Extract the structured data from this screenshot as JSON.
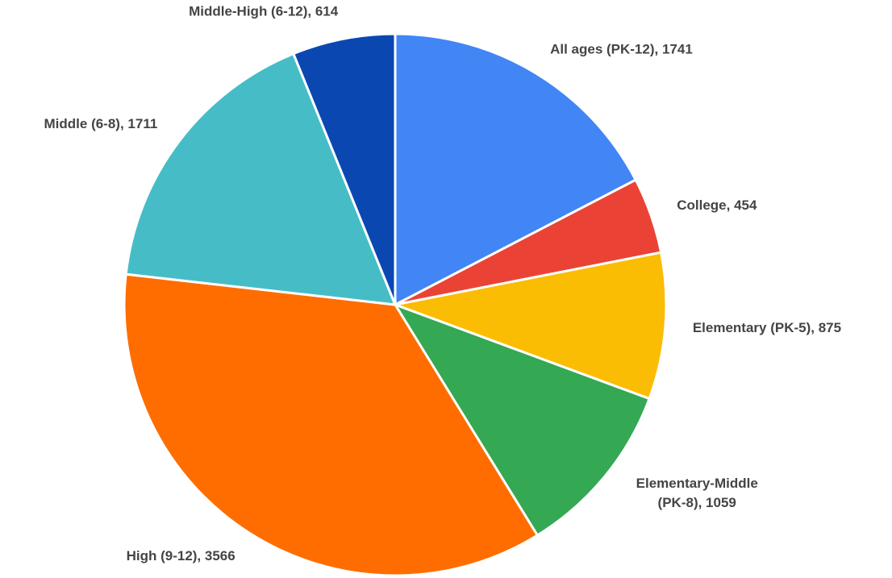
{
  "chart_data": {
    "type": "pie",
    "labels": [
      [
        "All ages (PK-12), 1741"
      ],
      [
        "College, 454"
      ],
      [
        "Elementary (PK-5), 875"
      ],
      [
        "Elementary-Middle",
        "(PK-8), 1059"
      ],
      [
        "High (9-12), 3566"
      ],
      [
        "Middle (6-8), 1711"
      ],
      [
        "Middle-High (6-12), 614"
      ]
    ],
    "values": [
      1741,
      454,
      875,
      1059,
      3566,
      1711,
      614
    ],
    "colors": [
      "#4285f4",
      "#ea4335",
      "#fbbc04",
      "#34a853",
      "#ff6d01",
      "#46bdc6",
      "#0b47b1"
    ]
  }
}
